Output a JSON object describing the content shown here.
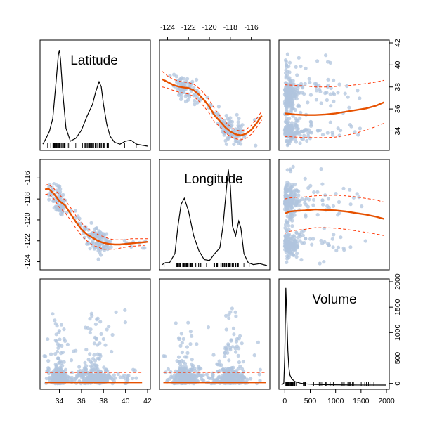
{
  "chart_data": {
    "type": "scatter",
    "variables": [
      "Latitude",
      "Longitude",
      "Volume"
    ],
    "colors": {
      "points": "#b0c4de",
      "smooth": "#e65100",
      "band": "#ff3300",
      "density": "#000000"
    },
    "axes": {
      "Latitude": {
        "range": [
          32.5,
          42.0
        ],
        "ticks": [
          34,
          36,
          38,
          40,
          42
        ]
      },
      "Longitude": {
        "range": [
          -124.5,
          -114.5
        ],
        "ticks": [
          -124,
          -122,
          -120,
          -118,
          -116
        ]
      },
      "Volume": {
        "range": [
          -60,
          2000
        ],
        "ticks": [
          0,
          500,
          1000,
          1500,
          2000
        ]
      }
    },
    "tick_labels": {
      "top": [
        "-124",
        "-122",
        "-120",
        "-118",
        "-116"
      ],
      "right_top": [
        "34",
        "36",
        "38",
        "40",
        "42"
      ],
      "left_mid": [
        "-124",
        "-122",
        "-120",
        "-118",
        "-116"
      ],
      "bottom_left": [
        "34",
        "36",
        "38",
        "40",
        "42"
      ],
      "bottom_right": [
        "0",
        "500",
        "1000",
        "1500",
        "2000"
      ],
      "right_bottom": [
        "0",
        "500",
        "1000",
        "1500",
        "2000"
      ]
    },
    "density": {
      "Latitude": {
        "x": [
          32.5,
          32.8,
          33.1,
          33.4,
          33.7,
          33.9,
          34.0,
          34.1,
          34.3,
          34.6,
          35.0,
          35.5,
          36.0,
          36.5,
          37.0,
          37.3,
          37.6,
          37.8,
          38.0,
          38.3,
          38.6,
          39.0,
          39.5,
          40.0,
          40.5,
          41.0,
          41.5,
          42.0
        ],
        "y": [
          0.02,
          0.08,
          0.15,
          0.28,
          0.65,
          0.92,
          0.97,
          0.88,
          0.55,
          0.18,
          0.05,
          0.08,
          0.16,
          0.3,
          0.42,
          0.55,
          0.65,
          0.6,
          0.42,
          0.22,
          0.1,
          0.04,
          0.02,
          0.05,
          0.06,
          0.02,
          0.01,
          0.0
        ]
      },
      "Longitude": {
        "x": [
          -124.5,
          -124.2,
          -123.8,
          -123.3,
          -123.0,
          -122.7,
          -122.4,
          -122.0,
          -121.5,
          -121.0,
          -120.5,
          -120.0,
          -119.5,
          -119.0,
          -118.7,
          -118.4,
          -118.2,
          -118.0,
          -117.8,
          -117.5,
          -117.2,
          -117.0,
          -116.7,
          -116.3,
          -115.8,
          -115.2,
          -114.5
        ],
        "y": [
          0.01,
          0.03,
          0.03,
          0.12,
          0.4,
          0.62,
          0.68,
          0.55,
          0.3,
          0.15,
          0.06,
          0.05,
          0.12,
          0.18,
          0.4,
          0.75,
          0.97,
          0.8,
          0.4,
          0.3,
          0.45,
          0.38,
          0.12,
          0.03,
          0.01,
          0.02,
          0.0
        ]
      },
      "Volume": {
        "x": [
          -60,
          -20,
          0,
          20,
          40,
          60,
          80,
          100,
          140,
          200,
          300,
          400,
          600,
          900,
          1300,
          2000
        ],
        "y": [
          0.0,
          0.02,
          0.3,
          0.98,
          0.7,
          0.35,
          0.18,
          0.1,
          0.06,
          0.035,
          0.02,
          0.012,
          0.006,
          0.003,
          0.001,
          0.0
        ]
      }
    },
    "smooth": {
      "Latitude~Longitude": {
        "x": [
          -124.5,
          -124,
          -123.5,
          -123,
          -122.5,
          -122,
          -121.5,
          -121,
          -120.5,
          -120,
          -119.5,
          -119,
          -118.5,
          -118,
          -117.5,
          -117,
          -116.5,
          -116,
          -115.5,
          -115
        ],
        "y": [
          38.7,
          38.45,
          38.2,
          38.05,
          37.95,
          37.9,
          37.7,
          37.3,
          36.8,
          36.2,
          35.4,
          34.9,
          34.35,
          33.95,
          33.7,
          33.6,
          33.75,
          34.1,
          34.7,
          35.4
        ],
        "upper": [
          39.4,
          39.0,
          38.7,
          38.55,
          38.45,
          38.4,
          38.25,
          37.9,
          37.4,
          36.8,
          36.0,
          35.4,
          34.85,
          34.4,
          34.1,
          34.0,
          34.15,
          34.5,
          35.1,
          35.8
        ],
        "lower": [
          38.0,
          37.9,
          37.7,
          37.55,
          37.45,
          37.35,
          37.15,
          36.7,
          36.2,
          35.6,
          34.8,
          34.4,
          33.85,
          33.5,
          33.3,
          33.2,
          33.35,
          33.7,
          34.3,
          35.0
        ]
      },
      "Longitude~Latitude": {
        "x": [
          32.7,
          33.0,
          33.5,
          34.0,
          34.5,
          35.0,
          35.5,
          36.0,
          36.5,
          37.0,
          37.5,
          38.0,
          38.5,
          39.0,
          39.5,
          40.0,
          40.5,
          41.0,
          41.5,
          42.0
        ],
        "y": [
          -117.1,
          -117.0,
          -117.5,
          -118.2,
          -118.6,
          -119.4,
          -120.2,
          -120.9,
          -121.4,
          -121.7,
          -122.0,
          -122.2,
          -122.3,
          -122.35,
          -122.35,
          -122.3,
          -122.25,
          -122.2,
          -122.15,
          -122.1
        ],
        "upper": [
          -116.7,
          -116.6,
          -117.0,
          -117.6,
          -118.1,
          -118.8,
          -119.6,
          -120.3,
          -120.8,
          -121.1,
          -121.4,
          -121.6,
          -121.8,
          -121.9,
          -121.9,
          -121.9,
          -121.8,
          -121.8,
          -121.8,
          -121.8
        ],
        "lower": [
          -117.6,
          -117.5,
          -118.0,
          -118.8,
          -119.3,
          -120.0,
          -120.8,
          -121.5,
          -122.0,
          -122.4,
          -122.6,
          -122.8,
          -122.8,
          -122.8,
          -122.7,
          -122.6,
          -122.5,
          -122.5,
          -122.45,
          -122.4
        ]
      },
      "Latitude~Volume": {
        "x": [
          0,
          200,
          400,
          600,
          800,
          1000,
          1200,
          1400,
          1600,
          1800,
          1950
        ],
        "y": [
          35.6,
          35.5,
          35.45,
          35.45,
          35.5,
          35.6,
          35.75,
          35.9,
          36.05,
          36.3,
          36.6
        ],
        "upper": [
          38.2,
          38.15,
          38.1,
          38.0,
          38.0,
          38.05,
          38.1,
          38.2,
          38.3,
          38.45,
          38.6
        ],
        "lower": [
          33.5,
          33.45,
          33.4,
          33.4,
          33.4,
          33.45,
          33.6,
          33.8,
          34.1,
          34.4,
          34.7
        ]
      },
      "Longitude~Volume": {
        "x": [
          0,
          100,
          200,
          400,
          600,
          800,
          1000,
          1200,
          1400,
          1600,
          1800,
          1950
        ],
        "y": [
          -119.4,
          -119.2,
          -119.15,
          -119.1,
          -119.0,
          -119.05,
          -119.1,
          -119.2,
          -119.35,
          -119.5,
          -119.7,
          -119.9
        ],
        "upper": [
          -118.0,
          -117.9,
          -117.85,
          -117.8,
          -117.7,
          -117.65,
          -117.65,
          -117.7,
          -117.8,
          -117.95,
          -118.1,
          -118.3
        ],
        "lower": [
          -121.3,
          -121.1,
          -121.0,
          -120.9,
          -120.75,
          -120.75,
          -120.8,
          -120.9,
          -121.05,
          -121.2,
          -121.35,
          -121.5
        ]
      },
      "Volume~Latitude": {
        "x": [
          32.7,
          33.5,
          34.5,
          35.5,
          36.5,
          37.5,
          38.5,
          39.5,
          40.5,
          41.5
        ],
        "y": [
          20,
          20,
          20,
          20,
          20,
          20,
          20,
          20,
          20,
          20
        ],
        "upper": [
          215,
          215,
          215,
          215,
          215,
          215,
          215,
          215,
          215,
          215
        ],
        "lower": [
          20,
          20,
          20,
          20,
          20,
          20,
          20,
          20,
          20,
          20
        ]
      },
      "Volume~Longitude": {
        "x": [
          -124.4,
          -123,
          -122,
          -121,
          -120,
          -119,
          -118,
          -117,
          -116,
          -115,
          -114.6
        ],
        "y": [
          20,
          20,
          20,
          20,
          20,
          20,
          20,
          20,
          20,
          20,
          20
        ],
        "upper": [
          215,
          215,
          215,
          215,
          215,
          215,
          215,
          215,
          215,
          215,
          215
        ],
        "lower": [
          20,
          20,
          20,
          20,
          20,
          20,
          20,
          20,
          20,
          20,
          20
        ]
      }
    }
  }
}
